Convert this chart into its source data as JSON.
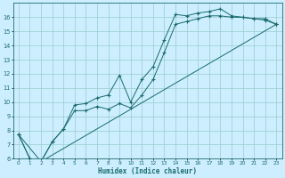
{
  "xlabel": "Humidex (Indice chaleur)",
  "bg_color": "#cceeff",
  "line_color": "#1a6b6b",
  "grid_color": "#99cccc",
  "xlim": [
    -0.5,
    23.5
  ],
  "ylim": [
    6,
    17
  ],
  "yticks": [
    6,
    7,
    8,
    9,
    10,
    11,
    12,
    13,
    14,
    15,
    16
  ],
  "xtick_labels": [
    "0",
    "1",
    "2",
    "3",
    "4",
    "5",
    "6",
    "7",
    "8",
    "9",
    "10",
    "11",
    "12",
    "13",
    "14",
    "15",
    "16",
    "17",
    "18",
    "19",
    "20",
    "21",
    "22",
    "23"
  ],
  "xtick_pos": [
    0,
    1,
    2,
    3,
    4,
    5,
    6,
    7,
    8,
    9,
    10,
    11,
    12,
    13,
    14,
    15,
    16,
    17,
    18,
    19,
    20,
    21,
    22,
    23
  ],
  "line1_x": [
    0,
    1,
    2,
    3,
    4,
    5,
    6,
    7,
    8,
    9,
    10,
    11,
    12,
    13,
    14,
    15,
    16,
    17,
    18,
    19,
    20,
    21,
    22,
    23
  ],
  "line1_y": [
    7.7,
    6.0,
    5.8,
    7.2,
    8.1,
    9.8,
    9.9,
    10.3,
    10.5,
    11.9,
    10.0,
    11.6,
    12.5,
    14.4,
    16.2,
    16.1,
    16.3,
    16.4,
    16.6,
    16.1,
    16.0,
    15.9,
    15.9,
    15.5
  ],
  "line2_x": [
    0,
    1,
    2,
    3,
    4,
    5,
    6,
    7,
    8,
    9,
    10,
    11,
    12,
    13,
    14,
    15,
    16,
    17,
    18,
    19,
    20,
    21,
    22,
    23
  ],
  "line2_y": [
    7.7,
    6.0,
    5.8,
    7.2,
    8.1,
    9.4,
    9.4,
    9.7,
    9.5,
    9.9,
    9.6,
    10.5,
    11.6,
    13.5,
    15.5,
    15.7,
    15.9,
    16.1,
    16.1,
    16.0,
    16.0,
    15.9,
    15.8,
    15.5
  ],
  "line3_x": [
    0,
    2,
    23
  ],
  "line3_y": [
    7.7,
    5.8,
    15.5
  ]
}
